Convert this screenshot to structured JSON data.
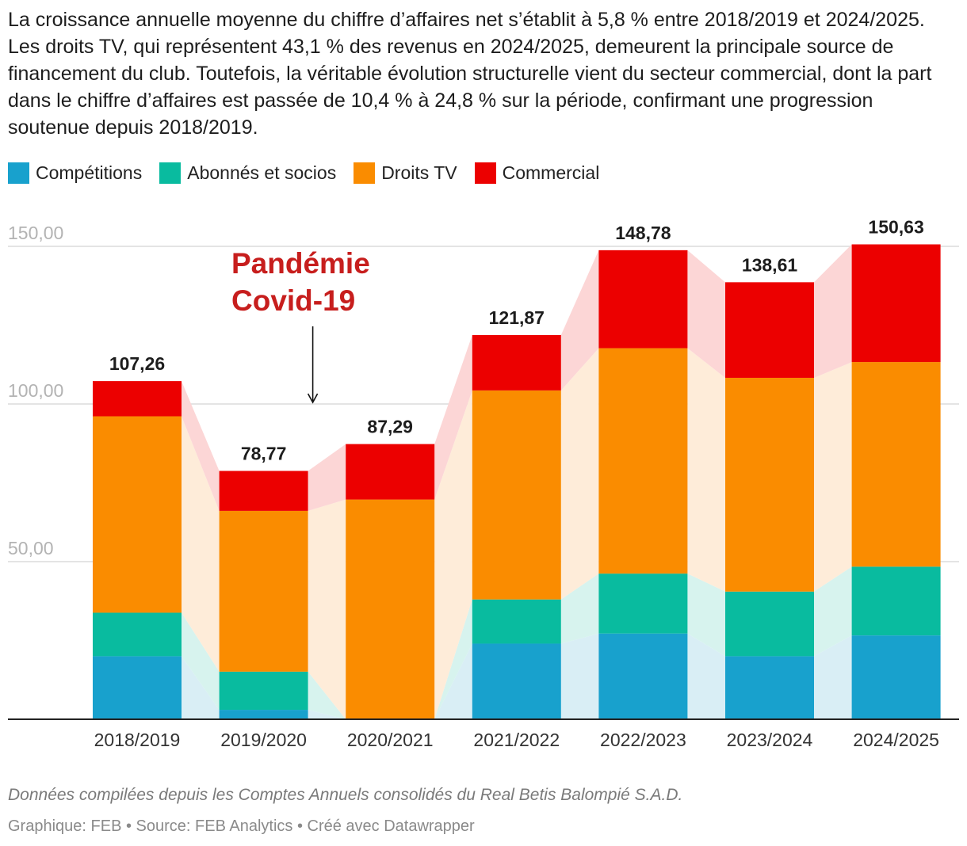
{
  "description": "La croissance annuelle moyenne du chiffre d’affaires net s’établit à 5,8 % entre 2018/2019 et 2024/2025. Les droits TV, qui représentent 43,1 % des revenus en 2024/2025, demeurent la principale source de financement du club. Toutefois, la véritable évolution structurelle vient du secteur commercial, dont la part dans le chiffre d’affaires est passée de 10,4 % à 24,8 % sur la période, confirmant une progression soutenue depuis 2018/2019.",
  "chart_data": {
    "type": "bar",
    "stacked": true,
    "categories": [
      "2018/2019",
      "2019/2020",
      "2020/2021",
      "2021/2022",
      "2022/2023",
      "2023/2024",
      "2024/2025"
    ],
    "series": [
      {
        "name": "Compétitions",
        "color": "#18a1cd",
        "area_color": "#d9eef5",
        "values": [
          20.0,
          3.0,
          0.0,
          24.0,
          27.2,
          20.0,
          26.6
        ]
      },
      {
        "name": "Abonnés et socios",
        "color": "#09bb9f",
        "area_color": "#d7f3ee",
        "values": [
          13.8,
          12.1,
          0.0,
          14.0,
          19.0,
          20.5,
          21.8
        ]
      },
      {
        "name": "Droits TV",
        "color": "#fa8c00",
        "area_color": "#feecd9",
        "values": [
          62.3,
          51.0,
          69.7,
          66.3,
          71.5,
          67.8,
          64.9
        ]
      },
      {
        "name": "Commercial",
        "color": "#ec0000",
        "area_color": "#fcd6d6",
        "values": [
          11.16,
          12.67,
          17.59,
          17.57,
          31.08,
          30.31,
          37.33
        ]
      }
    ],
    "totals": [
      107.26,
      78.77,
      87.29,
      121.87,
      148.78,
      138.61,
      150.63
    ],
    "total_labels": [
      "107,26",
      "78,77",
      "87,29",
      "121,87",
      "148,78",
      "138,61",
      "150,63"
    ],
    "y_ticks": [
      50,
      100,
      150
    ],
    "y_tick_labels": [
      "50,00",
      "100,00",
      "150,00"
    ],
    "ylim": [
      0,
      150
    ],
    "grid": true,
    "annotation": {
      "lines": [
        "Pandémie",
        "Covid-19"
      ],
      "category": "2019/2020",
      "color": "#c71e1d"
    },
    "title": "",
    "xlabel": "",
    "ylabel": ""
  },
  "notes": "Données compilées depuis les Comptes Annuels consolidés du Real Betis Balompié S.A.D.",
  "credits": "Graphique: FEB • Source: FEB Analytics • Créé avec Datawrapper"
}
